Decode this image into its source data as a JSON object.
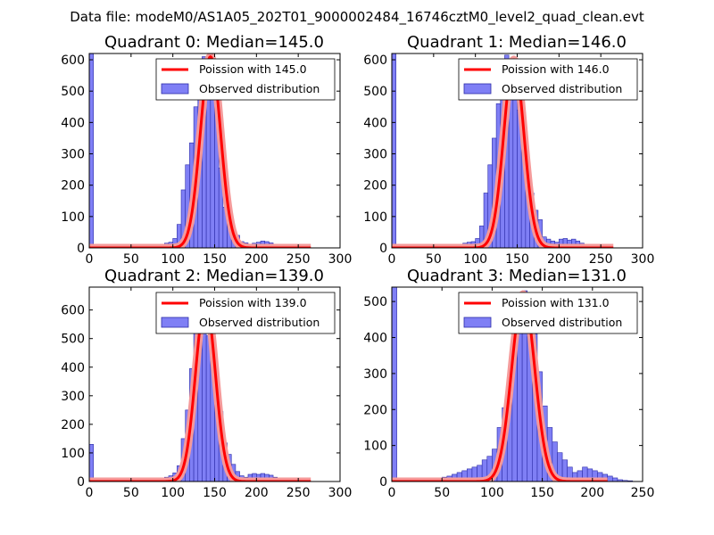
{
  "suptitle": "Data file: modeM0/AS1A05_202T01_9000002484_16746cztM0_level2_quad_clean.evt",
  "colors": {
    "bars": "#7f7ff5",
    "bar_edge": "#2c2ca8",
    "poisson": "#ff0000",
    "poisson_light": "#f59a9a"
  },
  "chart_data": [
    {
      "type": "bar",
      "title": "Quadrant 0: Median=145.0",
      "xlim": [
        0,
        300
      ],
      "ylim": [
        0,
        620
      ],
      "xticks": [
        0,
        50,
        100,
        150,
        200,
        250,
        300
      ],
      "yticks": [
        0,
        100,
        200,
        300,
        400,
        500,
        600
      ],
      "legend": {
        "placement": "top-right",
        "entries": [
          "Poission with 145.0",
          "Observed distribution"
        ]
      },
      "bin_width": 5,
      "bins_x": [
        0,
        55,
        60,
        65,
        70,
        75,
        80,
        85,
        90,
        95,
        100,
        105,
        110,
        115,
        120,
        125,
        130,
        135,
        140,
        145,
        150,
        155,
        160,
        165,
        170,
        175,
        180,
        185,
        190,
        195,
        200,
        205,
        210,
        215,
        220,
        225,
        230,
        235,
        240,
        245,
        250
      ],
      "bins_y": [
        620,
        2,
        2,
        3,
        4,
        5,
        10,
        12,
        15,
        18,
        30,
        75,
        185,
        265,
        335,
        450,
        575,
        610,
        600,
        520,
        450,
        255,
        130,
        105,
        60,
        40,
        20,
        16,
        12,
        15,
        18,
        22,
        20,
        16,
        12,
        10,
        6,
        3,
        2,
        1,
        1
      ],
      "poisson": {
        "mean": 145.0,
        "amplitude": 610
      }
    },
    {
      "type": "bar",
      "title": "Quadrant 1: Median=146.0",
      "xlim": [
        0,
        300
      ],
      "ylim": [
        0,
        620
      ],
      "xticks": [
        0,
        50,
        100,
        150,
        200,
        250,
        300
      ],
      "yticks": [
        0,
        100,
        200,
        300,
        400,
        500,
        600
      ],
      "legend": {
        "placement": "top-right",
        "entries": [
          "Poission with 146.0",
          "Observed distribution"
        ]
      },
      "bin_width": 5,
      "bins_x": [
        0,
        55,
        60,
        65,
        70,
        75,
        80,
        85,
        90,
        95,
        100,
        105,
        110,
        115,
        120,
        125,
        130,
        135,
        140,
        145,
        150,
        155,
        160,
        165,
        170,
        175,
        180,
        185,
        190,
        195,
        200,
        205,
        210,
        215,
        220,
        225,
        230,
        235,
        240,
        245,
        250
      ],
      "bins_y": [
        620,
        2,
        2,
        3,
        5,
        8,
        10,
        15,
        18,
        20,
        30,
        70,
        175,
        265,
        350,
        460,
        565,
        615,
        600,
        500,
        440,
        310,
        240,
        175,
        120,
        90,
        35,
        28,
        22,
        18,
        28,
        30,
        25,
        28,
        22,
        15,
        10,
        5,
        3,
        2,
        1
      ],
      "poisson": {
        "mean": 146.0,
        "amplitude": 600
      }
    },
    {
      "type": "bar",
      "title": "Quadrant 2: Median=139.0",
      "xlim": [
        0,
        300
      ],
      "ylim": [
        0,
        680
      ],
      "xticks": [
        0,
        50,
        100,
        150,
        200,
        250,
        300
      ],
      "yticks": [
        0,
        100,
        200,
        300,
        400,
        500,
        600
      ],
      "legend": {
        "placement": "top-right",
        "entries": [
          "Poission with 139.0",
          "Observed distribution"
        ]
      },
      "bin_width": 5,
      "bins_x": [
        0,
        50,
        55,
        60,
        65,
        70,
        75,
        80,
        85,
        90,
        95,
        100,
        105,
        110,
        115,
        120,
        125,
        130,
        135,
        140,
        145,
        150,
        155,
        160,
        165,
        170,
        175,
        180,
        185,
        190,
        195,
        200,
        205,
        210,
        215,
        220,
        225,
        230,
        235,
        240,
        245,
        250
      ],
      "bins_y": [
        130,
        2,
        2,
        3,
        4,
        5,
        6,
        10,
        12,
        15,
        20,
        30,
        55,
        150,
        250,
        395,
        555,
        640,
        625,
        510,
        420,
        330,
        245,
        135,
        95,
        60,
        35,
        20,
        15,
        25,
        28,
        25,
        28,
        25,
        22,
        15,
        12,
        8,
        5,
        3,
        2,
        1
      ],
      "poisson": {
        "mean": 139.0,
        "amplitude": 630
      }
    },
    {
      "type": "bar",
      "title": "Quadrant 3: Median=131.0",
      "xlim": [
        0,
        250
      ],
      "ylim": [
        0,
        540
      ],
      "xticks": [
        0,
        50,
        100,
        150,
        200,
        250
      ],
      "yticks": [
        0,
        100,
        200,
        300,
        400,
        500
      ],
      "legend": {
        "placement": "top-right",
        "entries": [
          "Poission with 131.0",
          "Observed distribution"
        ]
      },
      "bin_width": 5,
      "bins_x": [
        0,
        40,
        45,
        50,
        55,
        60,
        65,
        70,
        75,
        80,
        85,
        90,
        95,
        100,
        105,
        110,
        115,
        120,
        125,
        130,
        135,
        140,
        145,
        150,
        155,
        160,
        165,
        170,
        175,
        180,
        185,
        190,
        195,
        200,
        205,
        210,
        215,
        220,
        225,
        230,
        235
      ],
      "bins_y": [
        540,
        5,
        8,
        12,
        15,
        20,
        25,
        30,
        35,
        40,
        45,
        60,
        70,
        90,
        150,
        205,
        265,
        360,
        480,
        530,
        490,
        410,
        305,
        210,
        150,
        110,
        80,
        60,
        40,
        25,
        30,
        40,
        35,
        30,
        25,
        20,
        15,
        10,
        5,
        3,
        2
      ],
      "poisson": {
        "mean": 131.0,
        "amplitude": 520
      }
    }
  ]
}
